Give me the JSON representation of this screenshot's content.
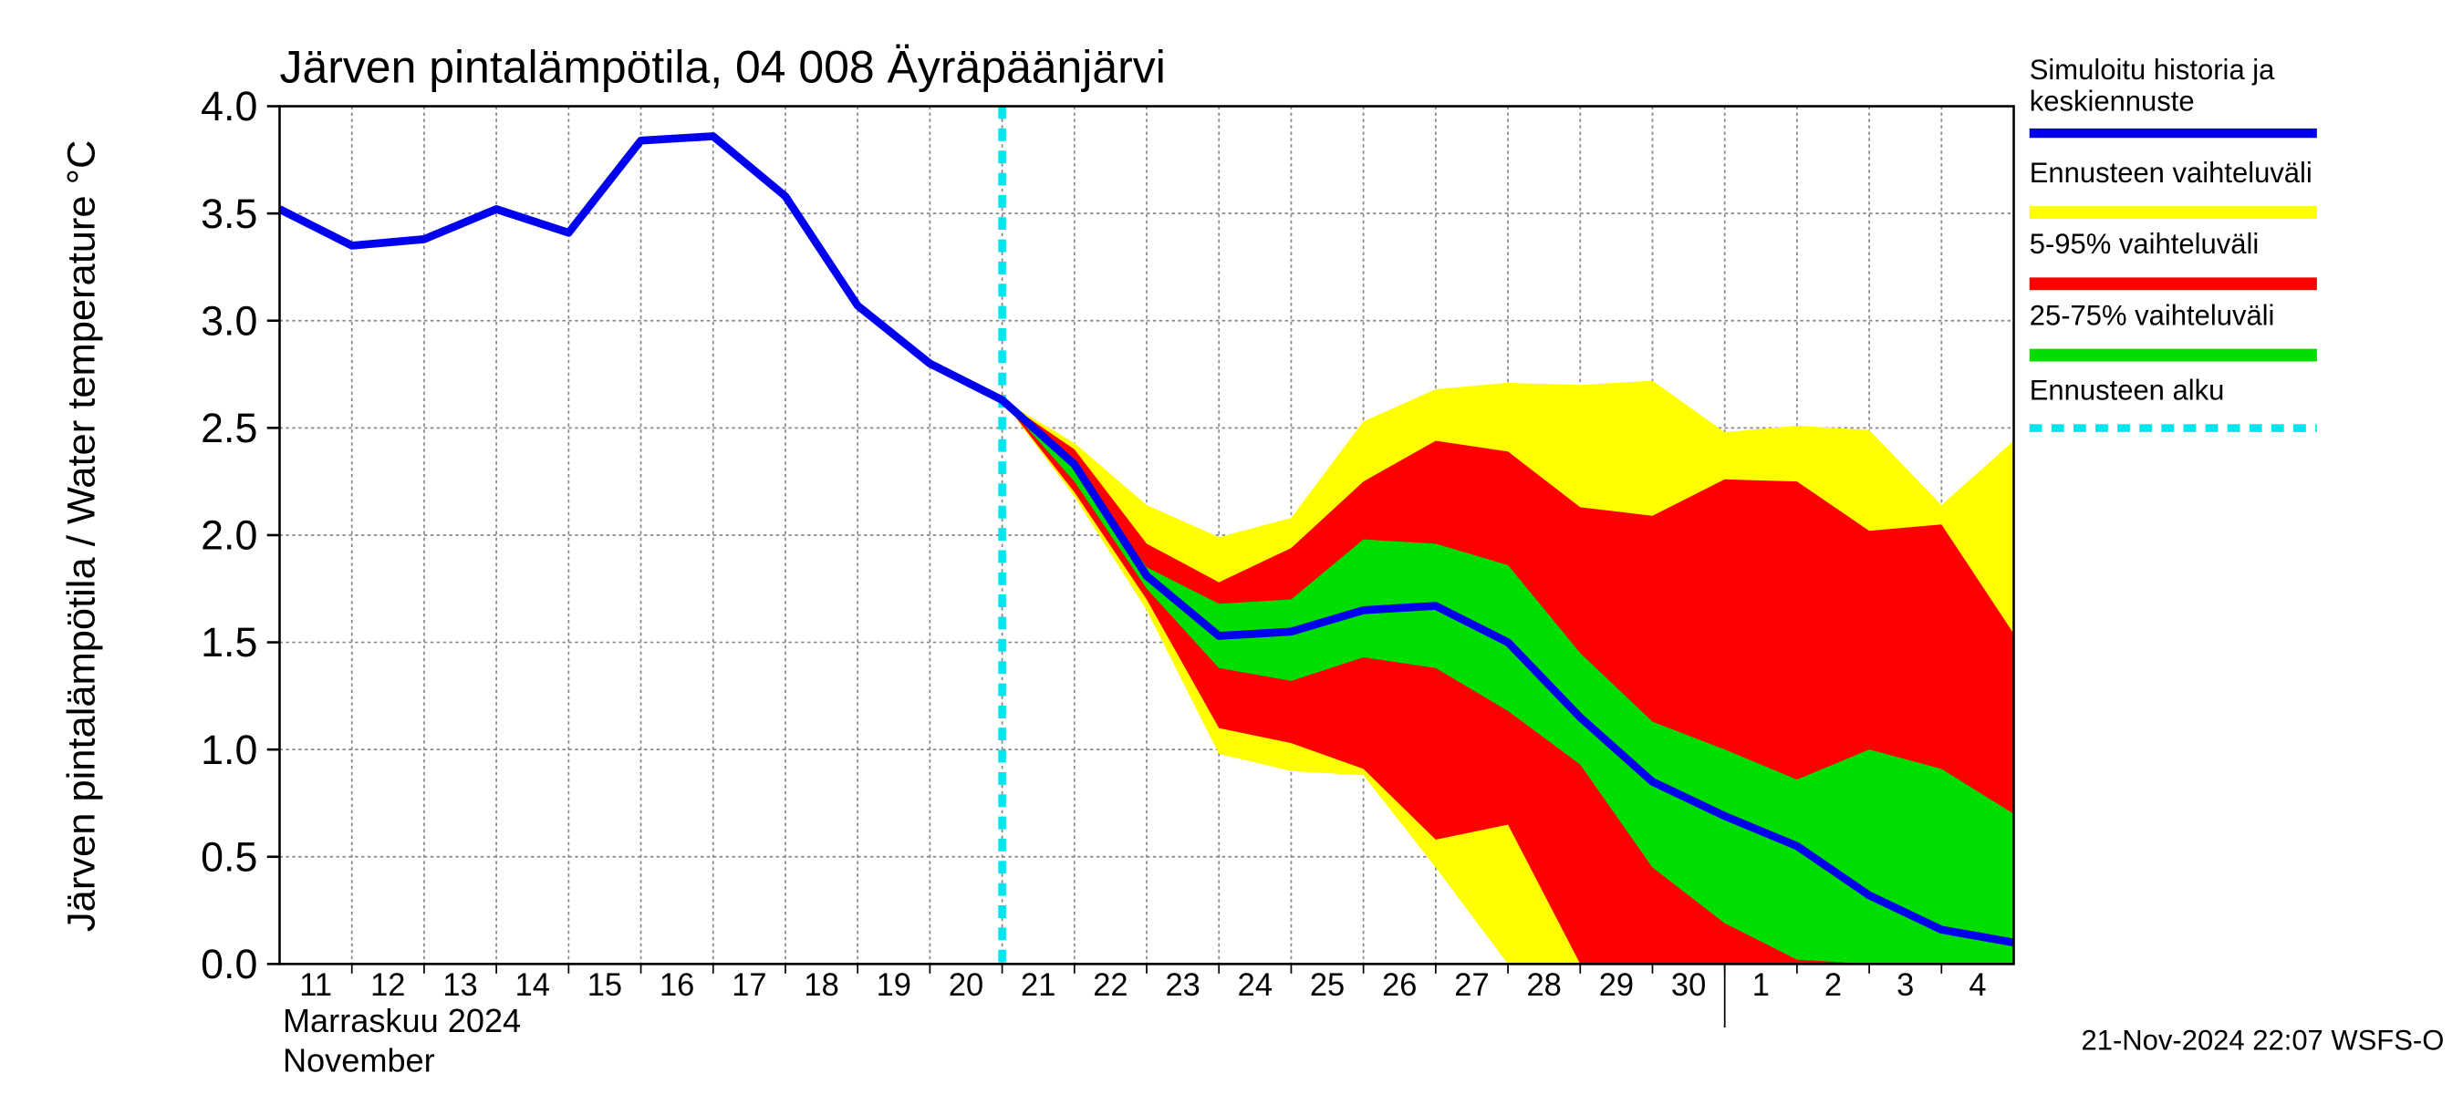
{
  "chart_data": {
    "type": "band-forecast",
    "title": "Järven pintalämpötila, 04 008 Äyräpäänjärvi",
    "y_label": "Järven pintalämpötila / Water temperature °C",
    "x_label_lines": [
      "Marraskuu 2024",
      "November"
    ],
    "footer": "21-Nov-2024 22:07 WSFS-O",
    "categories": [
      "11",
      "12",
      "13",
      "14",
      "15",
      "16",
      "17",
      "18",
      "19",
      "20",
      "21",
      "22",
      "23",
      "24",
      "25",
      "26",
      "27",
      "28",
      "29",
      "30",
      "1",
      "2",
      "3",
      "4",
      null
    ],
    "month_separator_index": 20,
    "ylim": [
      0,
      4
    ],
    "yticks": [
      {
        "value": 0,
        "label": "0.0"
      },
      0.5,
      {
        "value": 1,
        "label": "1.0"
      },
      1.5,
      {
        "value": 2,
        "label": "2.0"
      },
      2.5,
      {
        "value": 3,
        "label": "3.0"
      },
      3.5,
      {
        "value": 4,
        "label": "4.0"
      }
    ],
    "grid": true,
    "bands": [
      {
        "name": "Ennusteen vaihteluväli",
        "color": "#ffff00",
        "high": [
          null,
          null,
          null,
          null,
          null,
          null,
          null,
          null,
          null,
          null,
          2.63,
          2.43,
          2.14,
          1.99,
          2.08,
          2.53,
          2.68,
          2.71,
          2.7,
          2.72,
          2.48,
          2.51,
          2.49,
          2.14,
          2.44
        ],
        "low": [
          null,
          null,
          null,
          null,
          null,
          null,
          null,
          null,
          null,
          null,
          2.63,
          2.18,
          1.65,
          0.98,
          0.9,
          0.88,
          0.45,
          0,
          0,
          0,
          0,
          0,
          0,
          0,
          0
        ]
      },
      {
        "name": "5-95% vaihteluväli",
        "color": "#ff0000",
        "high": [
          null,
          null,
          null,
          null,
          null,
          null,
          null,
          null,
          null,
          null,
          2.63,
          2.4,
          1.96,
          1.78,
          1.94,
          2.25,
          2.44,
          2.39,
          2.13,
          2.09,
          2.26,
          2.25,
          2.02,
          2.05,
          1.54
        ],
        "low": [
          null,
          null,
          null,
          null,
          null,
          null,
          null,
          null,
          null,
          null,
          2.63,
          2.2,
          1.7,
          1.1,
          1.03,
          0.91,
          0.58,
          0.65,
          0,
          0,
          0,
          0,
          0,
          0,
          0
        ]
      },
      {
        "name": "25-75% vaihteluväli",
        "color": "#00dd00",
        "high": [
          null,
          null,
          null,
          null,
          null,
          null,
          null,
          null,
          null,
          null,
          2.63,
          2.31,
          1.85,
          1.68,
          1.7,
          1.98,
          1.96,
          1.86,
          1.45,
          1.13,
          1.0,
          0.86,
          1.0,
          0.91,
          0.7
        ],
        "low": [
          null,
          null,
          null,
          null,
          null,
          null,
          null,
          null,
          null,
          null,
          2.63,
          2.25,
          1.75,
          1.38,
          1.32,
          1.43,
          1.38,
          1.18,
          0.93,
          0.45,
          0.19,
          0.02,
          0,
          0,
          0
        ]
      }
    ],
    "series": [
      {
        "name": [
          "Simuloitu historia ja",
          "keskiennuste"
        ],
        "color": "#0000ee",
        "values": [
          3.52,
          3.35,
          3.38,
          3.52,
          3.41,
          3.84,
          3.86,
          3.58,
          3.07,
          2.8,
          2.63,
          2.33,
          1.81,
          1.53,
          1.55,
          1.65,
          1.67,
          1.5,
          1.15,
          0.85,
          0.69,
          0.55,
          0.32,
          0.16,
          0.1
        ]
      }
    ],
    "forecast_start": {
      "name": "Ennusteen alku",
      "index": 10,
      "color": "#00e5ee"
    }
  }
}
